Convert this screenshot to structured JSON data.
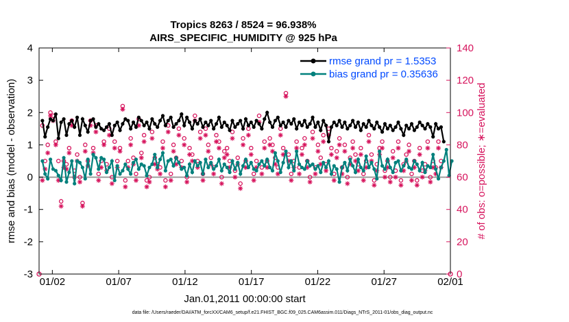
{
  "chart_data": {
    "type": "line",
    "title_line1": "Tropics 8263 / 8524 = 96.938%",
    "title_line2": "AIRS_SPECIFIC_HUMIDITY @ 925 hPa",
    "xlabel": "Jan.01,2011 00:00:00 start",
    "ylabel_left": "rmse and bias (model - observation)",
    "ylabel_right": "# of obs: o=possible; ∗=evaluated",
    "footnote": "data file: /Users/raeder/DAI/ATM_forcXX/CAM6_setup/f.e21.FHIST_BGC.f09_025.CAM6assim.011/Diags_NTrS_2011-01/obs_diag_output.nc",
    "xlim": [
      0,
      31
    ],
    "ylim_left": [
      -3,
      4
    ],
    "ylim_right": [
      0,
      140
    ],
    "x_ticks": [
      {
        "v": 1,
        "label": "01/02"
      },
      {
        "v": 6,
        "label": "01/07"
      },
      {
        "v": 11,
        "label": "01/12"
      },
      {
        "v": 16,
        "label": "01/17"
      },
      {
        "v": 21,
        "label": "01/22"
      },
      {
        "v": 26,
        "label": "01/27"
      },
      {
        "v": 31,
        "label": "02/01"
      }
    ],
    "y_ticks_left": [
      "-3",
      "-2",
      "-1",
      "0",
      "1",
      "2",
      "3",
      "4"
    ],
    "y_ticks_right": [
      "0",
      "20",
      "40",
      "60",
      "80",
      "100",
      "120",
      "140"
    ],
    "zero_line": 0,
    "series": [
      {
        "name": "rmse grand pr = 1.5353",
        "color": "#000000",
        "axis": "left",
        "values": [
          1.75,
          1.25,
          1.55,
          1.8,
          1.75,
          1.95,
          1.2,
          1.7,
          1.8,
          1.3,
          1.65,
          1.75,
          1.55,
          1.85,
          1.3,
          1.8,
          1.6,
          1.4,
          1.75,
          1.8,
          1.55,
          1.65,
          1.5,
          1.45,
          1.55,
          1.65,
          1.3,
          1.6,
          1.7,
          1.45,
          1.65,
          1.8,
          1.75,
          1.5,
          1.7,
          1.55,
          1.85,
          1.75,
          1.6,
          1.7,
          1.5,
          1.8,
          1.65,
          1.55,
          1.75,
          1.9,
          1.6,
          1.75,
          1.85,
          1.55,
          1.65,
          1.75,
          1.95,
          1.6,
          1.85,
          1.7,
          1.5,
          1.75,
          1.65,
          1.8,
          1.55,
          1.7,
          1.6,
          1.75,
          1.5,
          1.65,
          1.85,
          1.55,
          1.7,
          1.6,
          1.45,
          1.75,
          1.55,
          1.65,
          1.75,
          1.5,
          1.8,
          1.6,
          1.7,
          1.55,
          1.75,
          1.65,
          1.5,
          1.8,
          2.0,
          1.7,
          1.55,
          1.75,
          1.85,
          1.6,
          1.7,
          1.55,
          1.75,
          1.65,
          1.8,
          1.5,
          1.7,
          1.6,
          1.75,
          1.55,
          1.65,
          1.85,
          1.55,
          1.7,
          1.45,
          1.75,
          1.6,
          1.1,
          1.55,
          1.7,
          1.6,
          1.75,
          1.55,
          1.7,
          1.5,
          1.6,
          1.75,
          1.55,
          1.7,
          1.45,
          1.65,
          1.55,
          1.75,
          1.6,
          1.5,
          1.7,
          1.55,
          1.4,
          1.65,
          1.5,
          1.6,
          1.45,
          1.55,
          1.7,
          1.5,
          1.3,
          1.6,
          1.5,
          1.65,
          1.45,
          1.55,
          1.7,
          1.6,
          1.5,
          1.65,
          1.55,
          1.25,
          1.65,
          1.5,
          1.55,
          1.1
        ]
      },
      {
        "name": "bias grand pr = 0.35636",
        "color": "#00807c",
        "axis": "left",
        "values": [
          0.5,
          0.1,
          -0.05,
          0.55,
          0.25,
          0.2,
          0.05,
          -0.1,
          0.6,
          -0.15,
          0.15,
          0.5,
          -0.2,
          0.5,
          0.45,
          0.3,
          -0.05,
          0.55,
          0.1,
          0.7,
          0.6,
          0.25,
          0.6,
          0.55,
          0.15,
          0.3,
          0.5,
          -0.1,
          0.35,
          0.1,
          0.2,
          0.4,
          0.25,
          0.1,
          0.45,
          0.55,
          0.25,
          0.4,
          0.35,
          0.05,
          0.3,
          0.4,
          0.7,
          0.3,
          0.55,
          0.75,
          0.2,
          0.5,
          0.55,
          0.35,
          0.6,
          0.45,
          0.25,
          0.3,
          0.05,
          0.4,
          0.15,
          0.5,
          0.35,
          0.45,
          0.1,
          0.55,
          0.3,
          0.45,
          0.25,
          0.35,
          0.55,
          0.2,
          0.4,
          0.3,
          0.15,
          0.5,
          0.25,
          0.45,
          0.1,
          0.35,
          0.55,
          0.3,
          0.45,
          0.25,
          0.2,
          0.4,
          0.5,
          0.35,
          0.55,
          0.3,
          0.2,
          0.75,
          0.5,
          0.15,
          0.45,
          0.8,
          0.3,
          0.5,
          0.2,
          0.8,
          0.4,
          0.3,
          0.25,
          0.5,
          0.35,
          0.4,
          0.25,
          0.35,
          0.15,
          0.45,
          0.3,
          0.5,
          0.1,
          0.35,
          0.25,
          -0.15,
          0.3,
          0.45,
          0.2,
          0.55,
          0.35,
          0.15,
          0.55,
          0.3,
          0.2,
          0.65,
          0.3,
          0.45,
          0.25,
          -0.05,
          0.8,
          0.35,
          0.25,
          0.55,
          0.3,
          0.15,
          0.45,
          0.5,
          0.2,
          0.35,
          0.55,
          0.3,
          0.25,
          0.5,
          0.4,
          0.2,
          0.45,
          0.15,
          0.35,
          0.3,
          0.7,
          0.25,
          -0.05,
          0.3,
          0.5,
          0.85,
          0.05,
          0.5
        ]
      },
      {
        "name": "# obs possible",
        "color": "#d6135c",
        "axis": "right",
        "marker": "circle",
        "values": [
          92,
          70,
          80,
          100,
          98,
          82,
          70,
          45,
          70,
          68,
          78,
          95,
          64,
          74,
          60,
          44,
          80,
          70,
          95,
          78,
          92,
          62,
          70,
          82,
          68,
          90,
          60,
          82,
          70,
          78,
          104,
          58,
          70,
          84,
          72,
          62,
          96,
          75,
          86,
          58,
          60,
          88,
          72,
          68,
          66,
          82,
          58,
          92,
          62,
          80,
          72,
          90,
          70,
          84,
          60,
          78,
          74,
          98,
          70,
          88,
          62,
          90,
          80,
          72,
          66,
          86,
          82,
          60,
          76,
          78,
          70,
          88,
          64,
          72,
          56,
          84,
          70,
          90,
          78,
          62,
          70,
          98,
          66,
          82,
          70,
          84,
          80,
          72,
          66,
          90,
          78,
          112,
          74,
          62,
          70,
          82,
          66,
          78,
          84,
          70,
          60,
          88,
          66,
          80,
          72,
          86,
          68,
          90,
          78,
          62,
          76,
          84,
          66,
          80,
          60,
          72,
          82,
          74,
          68,
          78,
          62,
          70,
          86,
          74,
          58,
          68,
          78,
          82,
          64,
          70,
          60,
          76,
          64,
          82,
          58,
          68,
          74,
          80,
          62,
          70,
          58,
          78,
          64,
          68,
          82,
          60,
          70,
          66,
          82,
          70
        ]
      },
      {
        "name": "# obs evaluated",
        "color": "#d6135c",
        "axis": "right",
        "marker": "asterisk",
        "values": [
          58,
          65,
          75,
          98,
          95,
          80,
          58,
          42,
          66,
          65,
          75,
          92,
          60,
          70,
          57,
          42,
          76,
          67,
          92,
          75,
          88,
          58,
          66,
          80,
          64,
          86,
          56,
          78,
          66,
          76,
          102,
          54,
          66,
          80,
          68,
          58,
          92,
          72,
          82,
          54,
          57,
          84,
          68,
          65,
          62,
          78,
          54,
          88,
          58,
          76,
          68,
          86,
          66,
          80,
          57,
          74,
          70,
          95,
          66,
          84,
          58,
          86,
          76,
          68,
          62,
          82,
          78,
          56,
          72,
          74,
          66,
          84,
          60,
          68,
          53,
          80,
          66,
          86,
          74,
          58,
          66,
          94,
          62,
          78,
          66,
          80,
          76,
          68,
          62,
          86,
          74,
          110,
          70,
          58,
          66,
          78,
          62,
          74,
          80,
          66,
          57,
          84,
          62,
          76,
          68,
          82,
          64,
          86,
          74,
          58,
          72,
          80,
          62,
          76,
          56,
          68,
          78,
          70,
          64,
          74,
          58,
          66,
          82,
          70,
          55,
          64,
          74,
          78,
          60,
          66,
          57,
          72,
          60,
          78,
          55,
          64,
          70,
          76,
          58,
          66,
          55,
          74,
          60,
          64,
          78,
          57,
          66,
          62,
          78,
          66
        ]
      }
    ]
  },
  "legend": {
    "rmse_label": "rmse grand pr = 1.5353",
    "bias_label": "bias grand pr = 0.35636"
  }
}
